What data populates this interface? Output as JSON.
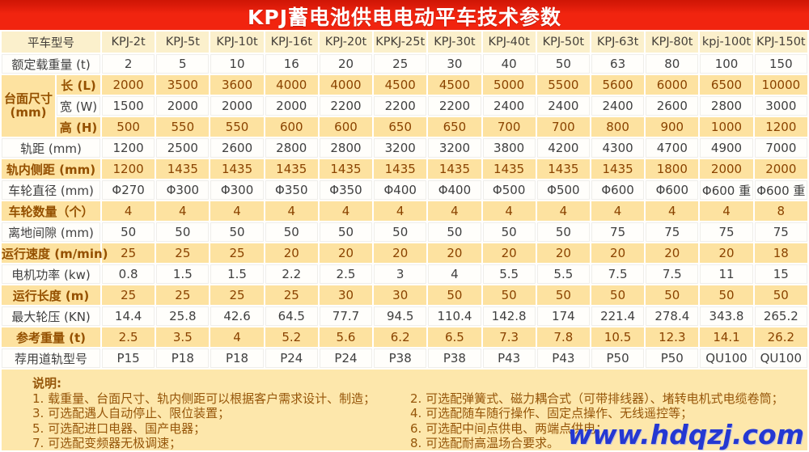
{
  "title": "KPJ蓄电池供电电动平车技术参数",
  "colors": {
    "banner_red": "#f1240f",
    "banner_red_dark": "#cf1605",
    "header_cream": "#fbf0cc",
    "row_yellow": "#fde2a0",
    "notes_yellow": "#fde7ab",
    "brown_text": "#8a4300",
    "brown_label": "#945000",
    "dark_text": "#3f3f3f",
    "watermark_blue": "#2438d2",
    "white_row": "#fffefb"
  },
  "table": {
    "model_header": "平车型号",
    "models": [
      "KPJ-2t",
      "KPJ-5t",
      "KPJ-10t",
      "KPJ-16t",
      "KPJ-20t",
      "KPKJ-25t",
      "KPJ-30t",
      "KPJ-40t",
      "KPJ-50t",
      "KPJ-63t",
      "KPJ-80t",
      "kpj-100t",
      "KPJ-150t"
    ],
    "group": {
      "label": "台面尺寸 (mm)",
      "start_row": 1,
      "span": 3
    },
    "rows": [
      {
        "label": "额定载重量 (t)",
        "shade": "w",
        "values": [
          2,
          5,
          10,
          16,
          20,
          25,
          30,
          40,
          50,
          63,
          80,
          100,
          150
        ]
      },
      {
        "label": "长 (L)",
        "sub": true,
        "shade": "y",
        "values": [
          2000,
          3500,
          3600,
          4000,
          4000,
          4500,
          4500,
          5000,
          5500,
          5600,
          6000,
          6500,
          10000
        ]
      },
      {
        "label": "宽 (W)",
        "sub": true,
        "shade": "w",
        "values": [
          1500,
          2000,
          2000,
          2000,
          2200,
          2200,
          2200,
          2400,
          2400,
          2400,
          2600,
          2800,
          3000
        ]
      },
      {
        "label": "高 (H)",
        "sub": true,
        "shade": "y",
        "values": [
          500,
          550,
          550,
          600,
          600,
          650,
          650,
          700,
          700,
          800,
          900,
          1000,
          1200
        ]
      },
      {
        "label": "轨距 (mm)",
        "shade": "w",
        "values": [
          1200,
          2500,
          2600,
          2800,
          2800,
          3200,
          3200,
          3800,
          4200,
          4300,
          4700,
          4900,
          7000
        ]
      },
      {
        "label": "轨内侧距 (mm)",
        "shade": "y",
        "values": [
          1200,
          1435,
          1435,
          1435,
          1435,
          1435,
          1435,
          1435,
          1435,
          1435,
          1800,
          2000,
          2000
        ]
      },
      {
        "label": "车轮直径 (mm)",
        "shade": "w",
        "values": [
          "Φ270",
          "Φ300",
          "Φ300",
          "Φ350",
          "Φ350",
          "Φ400",
          "Φ400",
          "Φ500",
          "Φ500",
          "Φ600",
          "Φ600",
          "Φ600 重",
          "Φ600 重"
        ]
      },
      {
        "label": "车轮数量（个）",
        "shade": "y",
        "values": [
          4,
          4,
          4,
          4,
          4,
          4,
          4,
          4,
          4,
          4,
          4,
          4,
          8
        ]
      },
      {
        "label": "离地间隙 (mm)",
        "shade": "w",
        "values": [
          50,
          50,
          50,
          50,
          50,
          50,
          50,
          50,
          50,
          75,
          75,
          75,
          75
        ]
      },
      {
        "label": "运行速度 (m/min)",
        "shade": "y",
        "values": [
          25,
          25,
          25,
          20,
          20,
          20,
          20,
          20,
          20,
          20,
          20,
          20,
          18
        ]
      },
      {
        "label": "电机功率 (kw)",
        "shade": "w",
        "values": [
          0.8,
          1.5,
          1.5,
          2.2,
          2.5,
          3,
          4,
          5.5,
          5.5,
          7.5,
          7.5,
          11,
          15
        ]
      },
      {
        "label": "运行长度 (m)",
        "shade": "y",
        "values": [
          25,
          25,
          25,
          25,
          30,
          30,
          50,
          50,
          50,
          50,
          50,
          50,
          50
        ]
      },
      {
        "label": "最大轮压 (KN)",
        "shade": "w",
        "values": [
          14.4,
          25.8,
          42.6,
          64.5,
          77.7,
          94.5,
          110.4,
          142.8,
          174,
          221.4,
          278.4,
          343.8,
          265.2
        ]
      },
      {
        "label": "参考重量 (t)",
        "shade": "y",
        "values": [
          2.5,
          3.5,
          4,
          5.2,
          5.6,
          6.2,
          6.5,
          7.3,
          7.8,
          10.5,
          12.3,
          14.1,
          26.2
        ]
      },
      {
        "label": "荐用道轨型号",
        "shade": "w",
        "values": [
          "P15",
          "P18",
          "P18",
          "P24",
          "P24",
          "P38",
          "P38",
          "P43",
          "P43",
          "P50",
          "P50",
          "QU100",
          "QU100"
        ]
      }
    ]
  },
  "notes": {
    "heading": "说明:",
    "left": [
      "1. 载重量、台面尺寸、轨内侧距可以根据客户需求设计、制造；",
      "3. 可选配遇人自动停止、限位装置；",
      "5. 可选配进口电器、国产电器；",
      "7. 可选配变频器无极调速；"
    ],
    "right": [
      "2. 可选配弹簧式、磁力耦合式（可带排线器）、堵转电机式电缆卷筒；",
      "4. 可选配随车随行操作、固定点操作、无线遥控等；",
      "6. 可选配中间点供电、两端点供电；",
      "8. 可选配耐高温场合要求。"
    ]
  },
  "watermark": "www.hdqzj.com"
}
